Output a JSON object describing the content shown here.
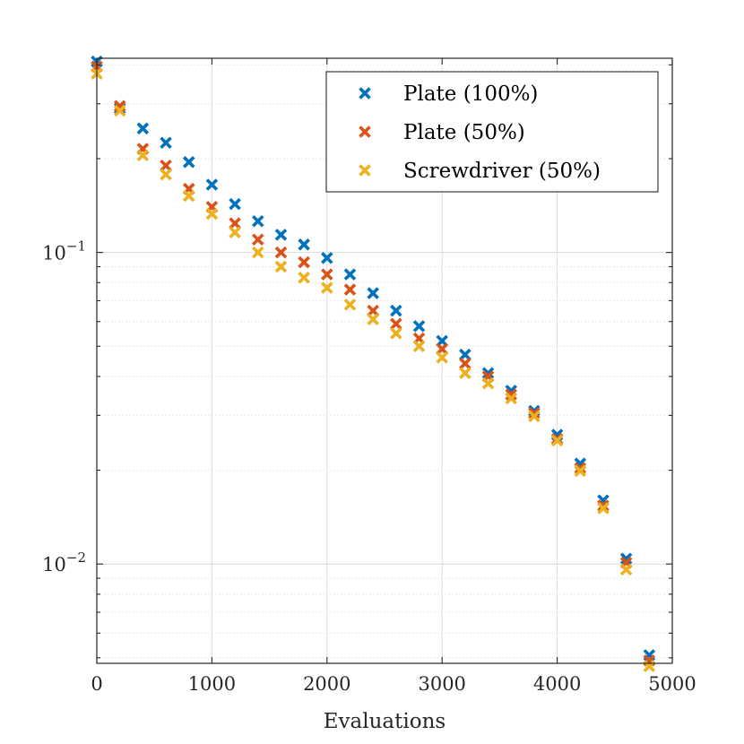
{
  "chart_data": {
    "type": "scatter",
    "xlabel": "Evaluations",
    "ylabel": "",
    "title": "",
    "xlim": [
      0,
      5000
    ],
    "ylim": [
      0.0048,
      0.42
    ],
    "yscale": "log",
    "grid": true,
    "legend_position": "top-right",
    "x_ticks": [
      0,
      1000,
      2000,
      3000,
      4000,
      5000
    ],
    "x_tick_labels": [
      "0",
      "1000",
      "2000",
      "3000",
      "4000",
      "5000"
    ],
    "y_ticks": [
      0.1,
      0.01
    ],
    "y_tick_labels": [
      {
        "base": "10",
        "exponent": "−1"
      },
      {
        "base": "10",
        "exponent": "−2"
      }
    ],
    "x": [
      0,
      200,
      400,
      600,
      800,
      1000,
      1200,
      1400,
      1600,
      1800,
      2000,
      2200,
      2400,
      2600,
      2800,
      3000,
      3200,
      3400,
      3600,
      3800,
      4000,
      4200,
      4400,
      4600,
      4800
    ],
    "series": [
      {
        "name": "Plate (100%)",
        "color": "#0072BD",
        "marker": "x",
        "values": [
          0.41,
          0.29,
          0.25,
          0.225,
          0.195,
          0.165,
          0.143,
          0.126,
          0.114,
          0.106,
          0.096,
          0.085,
          0.074,
          0.065,
          0.058,
          0.052,
          0.047,
          0.041,
          0.036,
          0.031,
          0.026,
          0.021,
          0.016,
          0.0104,
          0.0051
        ]
      },
      {
        "name": "Plate (50%)",
        "color": "#D95319",
        "marker": "x",
        "values": [
          0.395,
          0.295,
          0.215,
          0.19,
          0.16,
          0.14,
          0.124,
          0.11,
          0.1,
          0.093,
          0.085,
          0.076,
          0.065,
          0.059,
          0.053,
          0.049,
          0.044,
          0.04,
          0.035,
          0.0305,
          0.0252,
          0.0203,
          0.0154,
          0.0101,
          0.0049
        ]
      },
      {
        "name": "Screwdriver (50%)",
        "color": "#EDB120",
        "marker": "x",
        "values": [
          0.375,
          0.285,
          0.205,
          0.178,
          0.152,
          0.133,
          0.116,
          0.1,
          0.09,
          0.083,
          0.077,
          0.068,
          0.061,
          0.055,
          0.05,
          0.046,
          0.041,
          0.038,
          0.034,
          0.0298,
          0.0249,
          0.0199,
          0.0151,
          0.0096,
          0.0047
        ]
      }
    ]
  }
}
